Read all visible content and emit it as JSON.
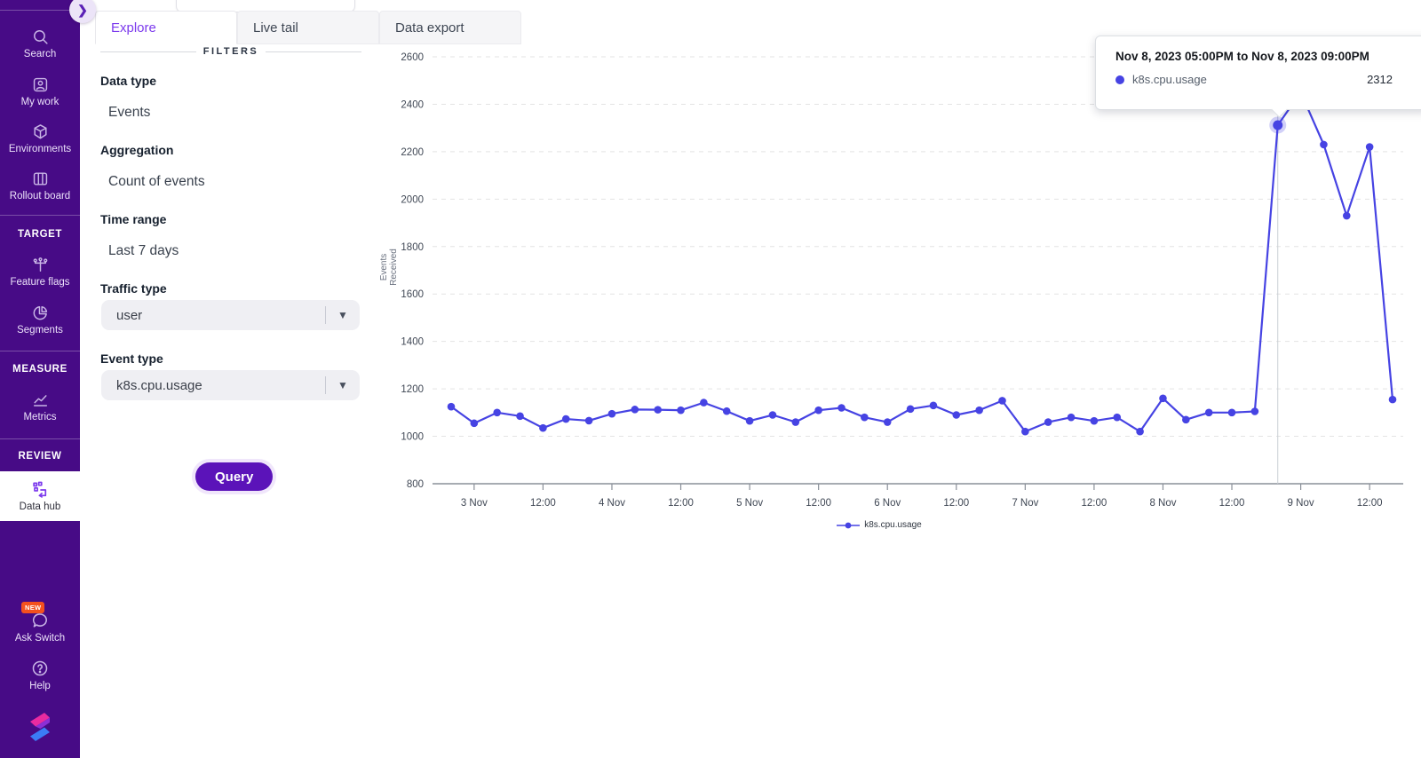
{
  "sidebar": {
    "expand_button_icon": "chevron-right-icon",
    "sections": [
      {
        "header": "",
        "items": [
          {
            "label": "Search",
            "icon": "search-icon"
          },
          {
            "label": "My work",
            "icon": "user-card-icon"
          },
          {
            "label": "Environments",
            "icon": "cube-icon"
          },
          {
            "label": "Rollout board",
            "icon": "board-columns-icon"
          }
        ]
      },
      {
        "header": "TARGET",
        "items": [
          {
            "label": "Feature flags",
            "icon": "feature-flag-icon"
          },
          {
            "label": "Segments",
            "icon": "pie-segments-icon"
          }
        ]
      },
      {
        "header": "MEASURE",
        "items": [
          {
            "label": "Metrics",
            "icon": "metrics-chart-icon"
          }
        ]
      },
      {
        "header": "REVIEW",
        "items": [
          {
            "label": "Data hub",
            "icon": "data-hub-icon",
            "active": true
          }
        ]
      }
    ],
    "footer_items": [
      {
        "label": "Ask Switch",
        "icon": "chat-bubble-icon",
        "badge": "NEW"
      },
      {
        "label": "Help",
        "icon": "help-circle-icon"
      }
    ],
    "logo_icon": "switch-logo-icon"
  },
  "tabs": [
    {
      "label": "Explore",
      "active": true
    },
    {
      "label": "Live tail",
      "active": false
    },
    {
      "label": "Data export",
      "active": false
    }
  ],
  "filters": {
    "heading": "FILTERS",
    "fields": [
      {
        "label": "Data type",
        "value": "Events",
        "control": "text"
      },
      {
        "label": "Aggregation",
        "value": "Count of events",
        "control": "text"
      },
      {
        "label": "Time range",
        "value": "Last 7 days",
        "control": "text"
      },
      {
        "label": "Traffic type",
        "value": "user",
        "control": "select"
      },
      {
        "label": "Event type",
        "value": "k8s.cpu.usage",
        "control": "select"
      }
    ],
    "query_button": "Query"
  },
  "tooltip": {
    "title": "Nov 8, 2023 05:00PM to Nov 8, 2023 09:00PM",
    "series": "k8s.cpu.usage",
    "value": "2312",
    "dot_color": "#4643e3"
  },
  "chart_data": {
    "type": "line",
    "title": "",
    "xlabel": "",
    "ylabel": "Events Received",
    "ylim": [
      800,
      2600
    ],
    "y_ticks": [
      800,
      1000,
      1200,
      1400,
      1600,
      1800,
      2000,
      2200,
      2400,
      2600
    ],
    "x_tick_labels": [
      "3 Nov",
      "12:00",
      "4 Nov",
      "12:00",
      "5 Nov",
      "12:00",
      "6 Nov",
      "12:00",
      "7 Nov",
      "12:00",
      "8 Nov",
      "12:00",
      "9 Nov",
      "12:00"
    ],
    "grid": "horizontal-dashed",
    "legend_position": "bottom-center",
    "legend_label": "k8s.cpu.usage",
    "series": [
      {
        "name": "k8s.cpu.usage",
        "color": "#4643e3",
        "start": "Nov 2, 2023 8:00PM",
        "interval_hours": 4,
        "values": [
          1125,
          1055,
          1100,
          1085,
          1035,
          1073,
          1066,
          1095,
          1113,
          1112,
          1110,
          1142,
          1106,
          1065,
          1090,
          1060,
          1110,
          1120,
          1080,
          1060,
          1115,
          1130,
          1090,
          1110,
          1150,
          1020,
          1060,
          1080,
          1065,
          1080,
          1020,
          1160,
          1070,
          1100,
          1100,
          1105,
          2312,
          2450,
          2230,
          1930,
          2220,
          1155
        ]
      }
    ],
    "highlighted_point": {
      "series": "k8s.cpu.usage",
      "index": 36,
      "value": 2312,
      "range": "Nov 8, 2023 05:00PM to Nov 8, 2023 09:00PM"
    }
  },
  "colors": {
    "sidebar_bg": "#470b86",
    "accent_purple": "#7c3aed",
    "query_button_bg": "#5b13b9",
    "line_blue": "#4643e3",
    "badge_orange": "#f4511e"
  }
}
